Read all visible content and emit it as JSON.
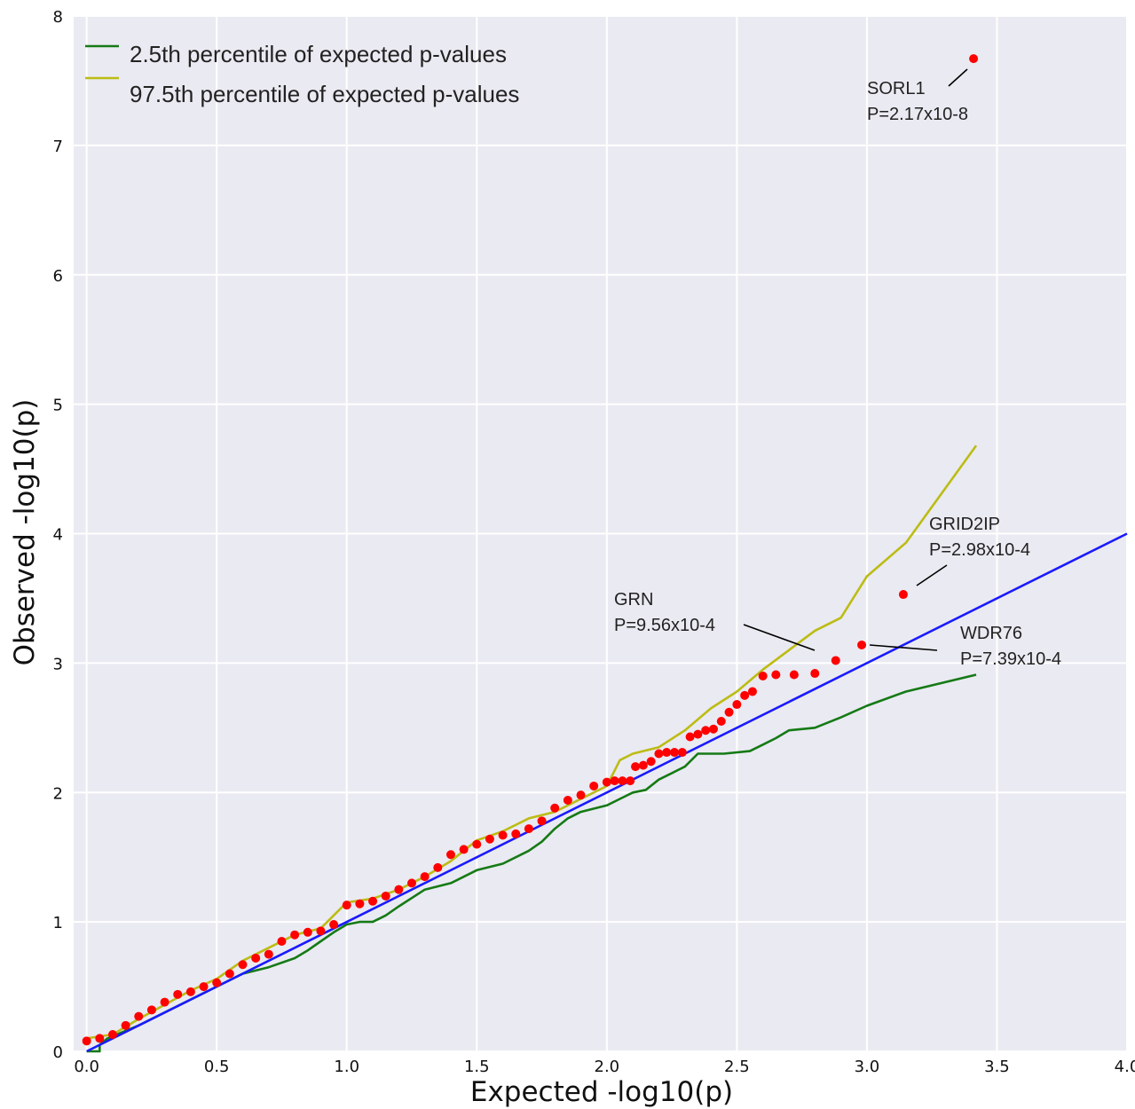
{
  "chart_data": {
    "type": "scatter",
    "title": "",
    "xlabel": "Expected -log10(p)",
    "ylabel": "Observed -log10(p)",
    "xlim": [
      -0.05,
      4.0
    ],
    "ylim": [
      0,
      8
    ],
    "xticks": [
      0.0,
      0.5,
      1.0,
      1.5,
      2.0,
      2.5,
      3.0,
      3.5,
      4.0
    ],
    "xtick_labels": [
      "0.0",
      "0.5",
      "1.0",
      "1.5",
      "2.0",
      "2.5",
      "3.0",
      "3.5",
      "4.0"
    ],
    "yticks": [
      0,
      1,
      2,
      3,
      4,
      5,
      6,
      7,
      8
    ],
    "ytick_labels": [
      "0",
      "1",
      "2",
      "3",
      "4",
      "5",
      "6",
      "7",
      "8"
    ],
    "grid": true,
    "legend_position": "top-left",
    "colors": {
      "background": "#eaeaf2",
      "grid": "#ffffff",
      "points": "#ff0000",
      "diagonal": "#1a1aff",
      "lower_band": "#157a15",
      "upper_band": "#bcbc14"
    },
    "series": [
      {
        "name": "2.5th percentile of expected p-values",
        "kind": "line",
        "color": "#157a15",
        "x": [
          0.0,
          0.05,
          0.05,
          0.08,
          0.2,
          0.35,
          0.5,
          0.6,
          0.7,
          0.8,
          0.85,
          0.9,
          0.95,
          1.0,
          1.05,
          1.1,
          1.15,
          1.2,
          1.3,
          1.4,
          1.5,
          1.6,
          1.7,
          1.75,
          1.8,
          1.85,
          1.9,
          2.0,
          2.05,
          2.1,
          2.15,
          2.2,
          2.25,
          2.3,
          2.35,
          2.45,
          2.55,
          2.6,
          2.65,
          2.7,
          2.8,
          2.9,
          3.0,
          3.15,
          3.42
        ],
        "y": [
          0.0,
          0.0,
          0.05,
          0.1,
          0.2,
          0.35,
          0.5,
          0.6,
          0.65,
          0.72,
          0.78,
          0.85,
          0.92,
          0.98,
          1.0,
          1.0,
          1.05,
          1.12,
          1.25,
          1.3,
          1.4,
          1.45,
          1.55,
          1.62,
          1.72,
          1.8,
          1.85,
          1.9,
          1.95,
          2.0,
          2.02,
          2.1,
          2.15,
          2.2,
          2.3,
          2.3,
          2.32,
          2.37,
          2.42,
          2.48,
          2.5,
          2.58,
          2.67,
          2.78,
          2.91
        ]
      },
      {
        "name": "97.5th percentile of expected p-values",
        "kind": "line",
        "color": "#bcbc14",
        "x": [
          0.0,
          0.1,
          0.2,
          0.3,
          0.4,
          0.5,
          0.6,
          0.7,
          0.8,
          0.9,
          1.0,
          1.1,
          1.2,
          1.3,
          1.4,
          1.5,
          1.6,
          1.7,
          1.8,
          1.9,
          2.0,
          2.05,
          2.1,
          2.2,
          2.3,
          2.4,
          2.5,
          2.6,
          2.7,
          2.8,
          2.9,
          3.0,
          3.15,
          3.42
        ],
        "y": [
          0.1,
          0.13,
          0.25,
          0.36,
          0.47,
          0.56,
          0.7,
          0.8,
          0.9,
          0.95,
          1.15,
          1.18,
          1.25,
          1.35,
          1.47,
          1.63,
          1.7,
          1.8,
          1.85,
          1.95,
          2.05,
          2.25,
          2.3,
          2.35,
          2.48,
          2.65,
          2.78,
          2.95,
          3.1,
          3.25,
          3.35,
          3.67,
          3.93,
          4.68
        ]
      },
      {
        "name": "",
        "kind": "line",
        "color": "#1a1aff",
        "x": [
          0.0,
          4.0
        ],
        "y": [
          0.0,
          4.0
        ]
      },
      {
        "name": "",
        "kind": "points",
        "color": "#ff0000",
        "x": [
          0.0,
          0.05,
          0.1,
          0.15,
          0.2,
          0.25,
          0.3,
          0.35,
          0.4,
          0.45,
          0.5,
          0.55,
          0.6,
          0.65,
          0.7,
          0.75,
          0.8,
          0.85,
          0.9,
          0.95,
          1.0,
          1.05,
          1.1,
          1.15,
          1.2,
          1.25,
          1.3,
          1.35,
          1.4,
          1.45,
          1.5,
          1.55,
          1.6,
          1.65,
          1.7,
          1.75,
          1.8,
          1.85,
          1.9,
          1.95,
          2.0,
          2.03,
          2.06,
          2.09,
          2.11,
          2.14,
          2.17,
          2.2,
          2.23,
          2.26,
          2.29,
          2.32,
          2.35,
          2.38,
          2.41,
          2.44,
          2.47,
          2.5,
          2.53,
          2.56,
          2.6,
          2.65,
          2.72,
          2.8,
          2.88,
          2.98,
          3.14,
          3.41
        ],
        "y": [
          0.08,
          0.1,
          0.13,
          0.2,
          0.27,
          0.32,
          0.38,
          0.44,
          0.46,
          0.5,
          0.53,
          0.6,
          0.67,
          0.72,
          0.75,
          0.85,
          0.9,
          0.92,
          0.93,
          0.98,
          1.13,
          1.14,
          1.16,
          1.2,
          1.25,
          1.3,
          1.35,
          1.42,
          1.52,
          1.56,
          1.6,
          1.64,
          1.67,
          1.68,
          1.72,
          1.78,
          1.88,
          1.94,
          1.98,
          2.05,
          2.08,
          2.09,
          2.09,
          2.09,
          2.2,
          2.21,
          2.24,
          2.3,
          2.31,
          2.31,
          2.31,
          2.43,
          2.45,
          2.48,
          2.49,
          2.55,
          2.62,
          2.68,
          2.75,
          2.78,
          2.9,
          2.91,
          2.91,
          2.92,
          3.02,
          3.14,
          3.53,
          7.67
        ]
      }
    ],
    "annotations": [
      {
        "gene": "SORL1",
        "pvalue": "P=2.17x10-8",
        "point": [
          3.41,
          7.67
        ]
      },
      {
        "gene": "GRID2IP",
        "pvalue": "P=2.98x10-4",
        "point": [
          3.14,
          3.53
        ]
      },
      {
        "gene": "GRN",
        "pvalue": "P=9.56x10-4",
        "point": [
          2.88,
          3.02
        ]
      },
      {
        "gene": "WDR76",
        "pvalue": "P=7.39x10-4",
        "point": [
          2.98,
          3.14
        ]
      }
    ]
  }
}
